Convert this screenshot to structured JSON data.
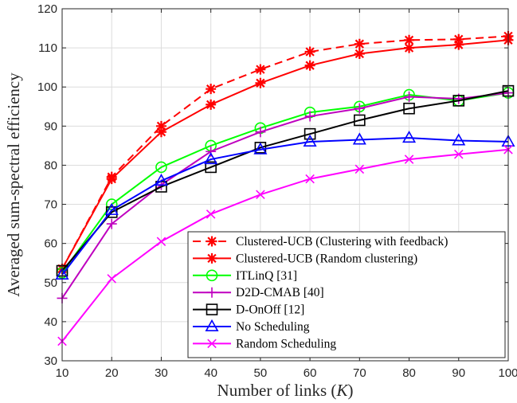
{
  "chart_data": {
    "type": "line",
    "xlabel": "Number of links (K)",
    "xlabel_parts": [
      "Number of links (",
      "K",
      ")"
    ],
    "ylabel": "Averaged sum-spectral efficiency",
    "xlim": [
      10,
      100
    ],
    "ylim": [
      30,
      120
    ],
    "xticks": [
      10,
      20,
      30,
      40,
      50,
      60,
      70,
      80,
      90,
      100
    ],
    "yticks": [
      30,
      40,
      50,
      60,
      70,
      80,
      90,
      100,
      110,
      120
    ],
    "grid": true,
    "legend_position": "bottom-right",
    "x": [
      10,
      20,
      30,
      40,
      50,
      60,
      70,
      80,
      90,
      100
    ],
    "series": [
      {
        "name": "Clustered-UCB (Clustering with feedback)",
        "color": "#ff0000",
        "dash": "dashed",
        "marker": "asterisk",
        "values": [
          53.5,
          77.0,
          90.0,
          99.5,
          104.5,
          109.0,
          111.0,
          112.0,
          112.2,
          113.0
        ]
      },
      {
        "name": "Clustered-UCB (Random clustering)",
        "color": "#ff0000",
        "dash": "solid",
        "marker": "asterisk",
        "values": [
          53.5,
          76.5,
          88.5,
          95.5,
          101.0,
          105.5,
          108.5,
          110.0,
          110.8,
          112.0
        ]
      },
      {
        "name": "ITLinQ [31]",
        "color": "#00ff00",
        "dash": "solid",
        "marker": "circle",
        "values": [
          52.5,
          70.0,
          79.5,
          85.0,
          89.5,
          93.5,
          95.0,
          98.0,
          96.5,
          98.5
        ]
      },
      {
        "name": "D2D-CMAB [40]",
        "color": "#bf00bf",
        "dash": "solid",
        "marker": "plus",
        "values": [
          46.0,
          65.0,
          75.0,
          83.5,
          88.5,
          92.5,
          94.5,
          97.5,
          97.0,
          98.5
        ]
      },
      {
        "name": "D-OnOff [12]",
        "color": "#000000",
        "dash": "solid",
        "marker": "square",
        "values": [
          53.0,
          68.0,
          74.5,
          79.5,
          84.5,
          88.0,
          91.5,
          94.5,
          96.5,
          99.0
        ]
      },
      {
        "name": "No Scheduling",
        "color": "#0000ff",
        "dash": "solid",
        "marker": "triangle",
        "values": [
          52.0,
          68.5,
          76.0,
          81.5,
          84.0,
          86.0,
          86.5,
          87.0,
          86.3,
          86.0
        ]
      },
      {
        "name": "Random Scheduling",
        "color": "#ff00ff",
        "dash": "solid",
        "marker": "x",
        "values": [
          35.0,
          51.0,
          60.5,
          67.5,
          72.5,
          76.5,
          79.0,
          81.5,
          82.8,
          84.0
        ]
      }
    ]
  }
}
